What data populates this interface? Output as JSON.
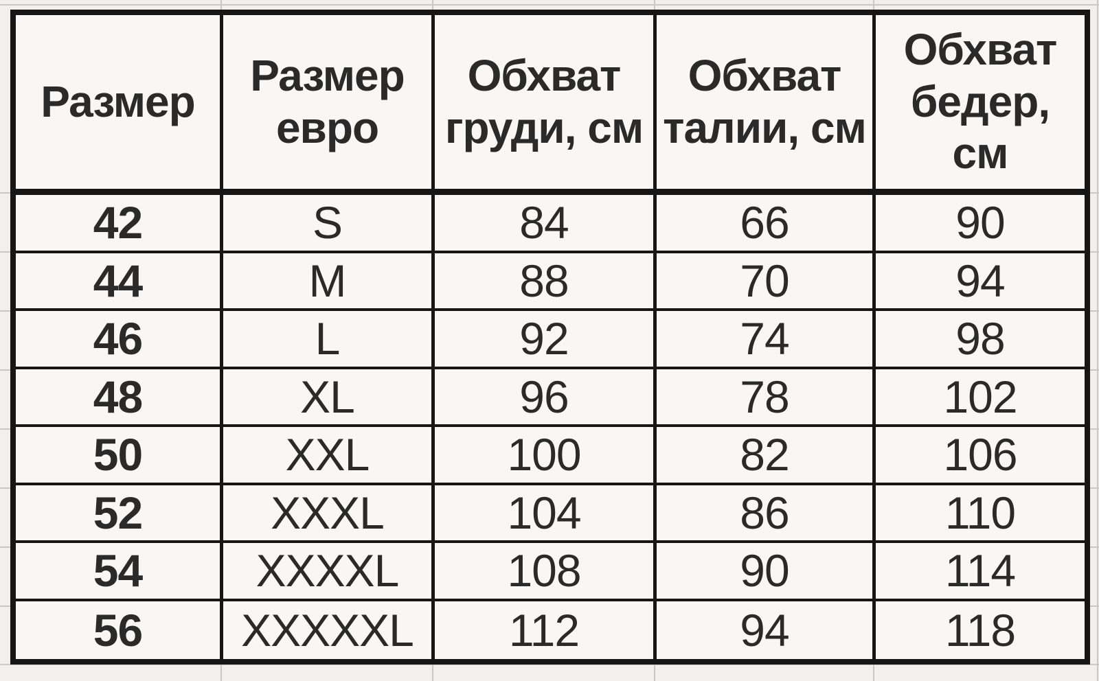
{
  "table": {
    "columns": [
      {
        "id": "size_ru",
        "label": "Размер"
      },
      {
        "id": "size_euro",
        "label": "Размер евро"
      },
      {
        "id": "chest_cm",
        "label": "Обхват груди, см"
      },
      {
        "id": "waist_cm",
        "label": "Обхват талии, см"
      },
      {
        "id": "hips_cm",
        "label": "Обхват бедер, см"
      }
    ],
    "rows": [
      [
        "42",
        "S",
        "84",
        "66",
        "90"
      ],
      [
        "44",
        "M",
        "88",
        "70",
        "94"
      ],
      [
        "46",
        "L",
        "92",
        "74",
        "98"
      ],
      [
        "48",
        "XL",
        "96",
        "78",
        "102"
      ],
      [
        "50",
        "XXL",
        "100",
        "82",
        "106"
      ],
      [
        "52",
        "XXXL",
        "104",
        "86",
        "110"
      ],
      [
        "54",
        "XXXXL",
        "108",
        "90",
        "114"
      ],
      [
        "56",
        "XXXXXL",
        "112",
        "94",
        "118"
      ]
    ]
  },
  "colors": {
    "table_border": "#161616",
    "cell_background": "#f8f7f5",
    "page_background": "#f1f0ee",
    "faint_gridline": "#c9c8c6",
    "text": "#2a2a2a"
  }
}
